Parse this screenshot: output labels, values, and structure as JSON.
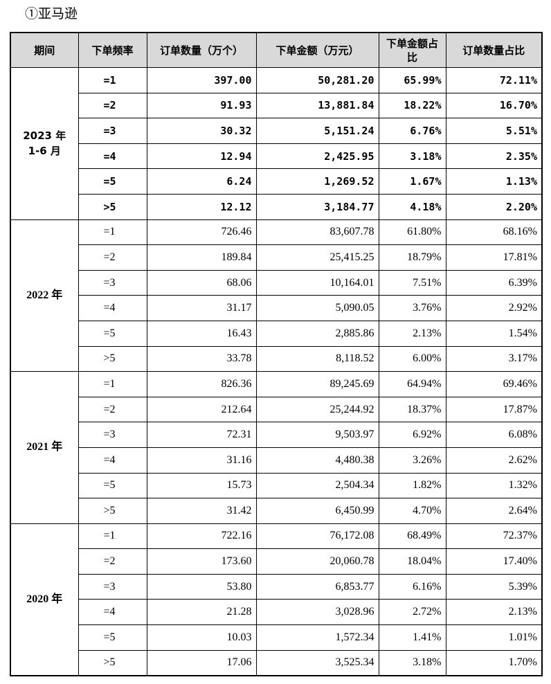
{
  "title": "①亚马逊",
  "table": {
    "headers": [
      "期间",
      "下单频率",
      "订单数量（万个）",
      "下单金额（万元）",
      "下单金额占比",
      "订单数量占比"
    ],
    "groups": [
      {
        "period": [
          "2023 年",
          "1-6 月"
        ],
        "rows": [
          [
            "=1",
            "397.00",
            "50,281.20",
            "65.99%",
            "72.11%"
          ],
          [
            "=2",
            "91.93",
            "13,881.84",
            "18.22%",
            "16.70%"
          ],
          [
            "=3",
            "30.32",
            "5,151.24",
            "6.76%",
            "5.51%"
          ],
          [
            "=4",
            "12.94",
            "2,425.95",
            "3.18%",
            "2.35%"
          ],
          [
            "=5",
            "6.24",
            "1,269.52",
            "1.67%",
            "1.13%"
          ],
          [
            ">5",
            "12.12",
            "3,184.77",
            "4.18%",
            "2.20%"
          ]
        ]
      },
      {
        "period": [
          "2022 年"
        ],
        "rows": [
          [
            "=1",
            "726.46",
            "83,607.78",
            "61.80%",
            "68.16%"
          ],
          [
            "=2",
            "189.84",
            "25,415.25",
            "18.79%",
            "17.81%"
          ],
          [
            "=3",
            "68.06",
            "10,164.01",
            "7.51%",
            "6.39%"
          ],
          [
            "=4",
            "31.17",
            "5,090.05",
            "3.76%",
            "2.92%"
          ],
          [
            "=5",
            "16.43",
            "2,885.86",
            "2.13%",
            "1.54%"
          ],
          [
            ">5",
            "33.78",
            "8,118.52",
            "6.00%",
            "3.17%"
          ]
        ]
      },
      {
        "period": [
          "2021 年"
        ],
        "rows": [
          [
            "=1",
            "826.36",
            "89,245.69",
            "64.94%",
            "69.46%"
          ],
          [
            "=2",
            "212.64",
            "25,244.92",
            "18.37%",
            "17.87%"
          ],
          [
            "=3",
            "72.31",
            "9,503.97",
            "6.92%",
            "6.08%"
          ],
          [
            "=4",
            "31.16",
            "4,480.38",
            "3.26%",
            "2.62%"
          ],
          [
            "=5",
            "15.73",
            "2,504.34",
            "1.82%",
            "1.32%"
          ],
          [
            ">5",
            "31.42",
            "6,450.99",
            "4.70%",
            "2.64%"
          ]
        ]
      },
      {
        "period": [
          "2020 年"
        ],
        "rows": [
          [
            "=1",
            "722.16",
            "76,172.08",
            "68.49%",
            "72.37%"
          ],
          [
            "=2",
            "173.60",
            "20,060.78",
            "18.04%",
            "17.40%"
          ],
          [
            "=3",
            "53.80",
            "6,853.77",
            "6.16%",
            "5.39%"
          ],
          [
            "=4",
            "21.28",
            "3,028.96",
            "2.72%",
            "2.13%"
          ],
          [
            "=5",
            "10.03",
            "1,572.34",
            "1.41%",
            "1.01%"
          ],
          [
            ">5",
            "17.06",
            "3,525.34",
            "3.18%",
            "1.70%"
          ]
        ]
      }
    ]
  }
}
